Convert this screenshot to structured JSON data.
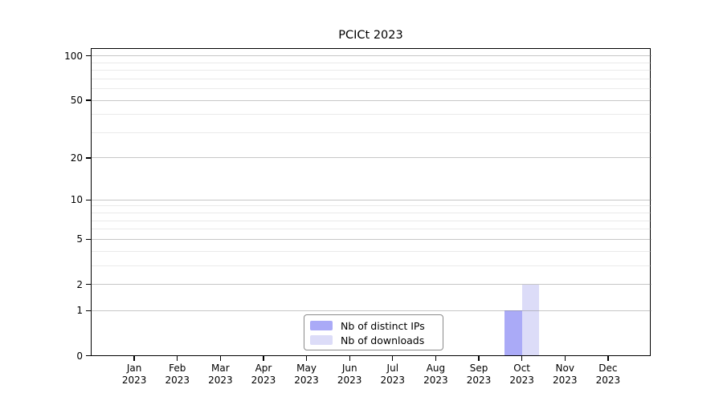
{
  "chart_data": {
    "type": "bar",
    "title": "PCICt 2023",
    "categories": [
      "Jan 2023",
      "Feb 2023",
      "Mar 2023",
      "Apr 2023",
      "May 2023",
      "Jun 2023",
      "Jul 2023",
      "Aug 2023",
      "Sep 2023",
      "Oct 2023",
      "Nov 2023",
      "Dec 2023"
    ],
    "series": [
      {
        "name": "Nb of distinct IPs",
        "color": "#aaaaf7",
        "values": [
          0,
          0,
          0,
          0,
          0,
          0,
          0,
          0,
          0,
          1,
          0,
          0
        ]
      },
      {
        "name": "Nb of downloads",
        "color": "#dcdcf8",
        "values": [
          0,
          0,
          0,
          0,
          0,
          0,
          0,
          0,
          0,
          2,
          0,
          0
        ]
      }
    ],
    "xlabel": "",
    "ylabel": "",
    "y_scale": "log1p",
    "y_major_ticks": [
      0,
      1,
      2,
      5,
      10,
      20,
      50,
      100
    ],
    "y_minor_gridlines": [
      3,
      4,
      6,
      7,
      8,
      9,
      30,
      40,
      60,
      70,
      80,
      90
    ],
    "ylim": [
      0,
      113
    ],
    "grid": "horizontal",
    "legend_position": "inside-bottom-center"
  }
}
